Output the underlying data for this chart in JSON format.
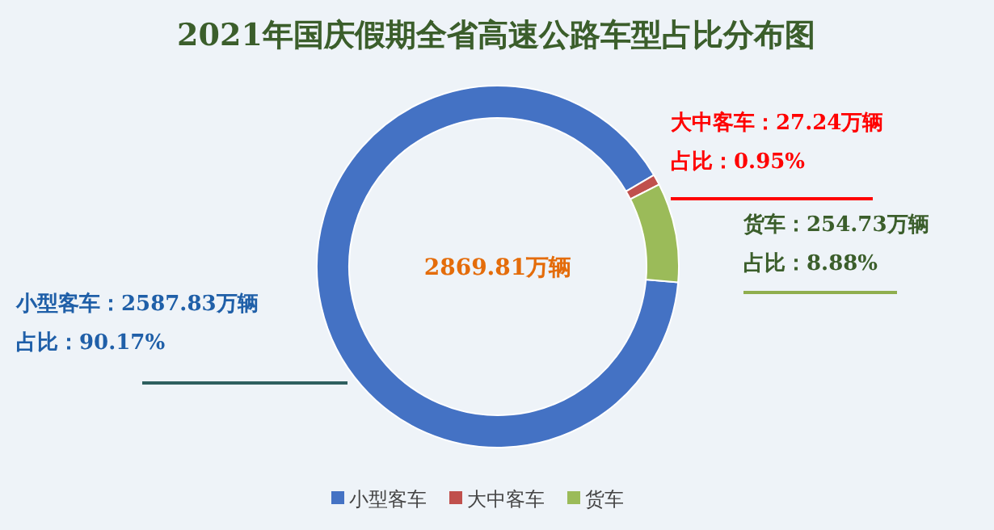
{
  "chart_data": {
    "type": "donut",
    "title": "2021年国庆假期全省高速公路车型占比分布图",
    "categories": [
      "小型客车",
      "大中客车",
      "货车"
    ],
    "values": [
      90.17,
      0.95,
      8.88
    ],
    "colors": [
      "#4472c4",
      "#c0504d",
      "#9bbb59"
    ],
    "annotations": [
      "2869.81万辆",
      {
        "text": "小型客车：2587.83万辆",
        "x": "小型客车"
      },
      {
        "text": "占比：90.17%",
        "x": "小型客车"
      },
      {
        "text": "大中客车：27.24万辆",
        "x": "大中客车"
      },
      {
        "text": "占比：0.95%",
        "x": "大中客车"
      },
      {
        "text": "货车：254.73万辆",
        "x": "货车"
      },
      {
        "text": "占比：8.88%",
        "x": "货车"
      }
    ],
    "legend": "bottom"
  }
}
